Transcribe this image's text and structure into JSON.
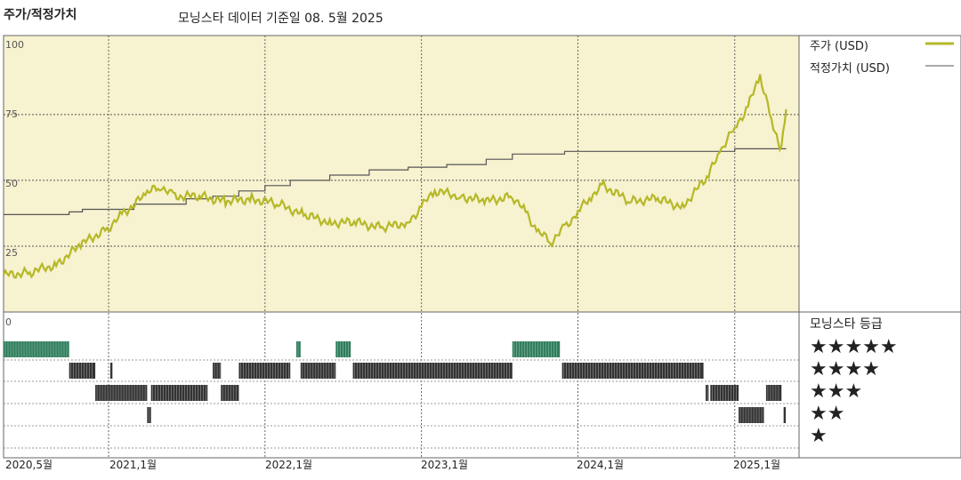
{
  "header": {
    "title": "주가/적정가치",
    "subtitle": "모닝스타 데이터 기준일 08. 5월 2025"
  },
  "legend": {
    "price_label": "주가 (USD)",
    "fair_label": "적정가치 (USD)"
  },
  "rating_panel": {
    "title": "모닝스타 등급",
    "stars": [
      "★★★★★",
      "★★★★",
      "★★★",
      "★★",
      "★"
    ]
  },
  "colors": {
    "price": "#b5b827",
    "fair": "#555555",
    "band5": "#2e7d5b",
    "bar": "#333333",
    "bg": "#f7f2cf"
  },
  "chart_data": {
    "type": "line",
    "title": "주가/적정가치",
    "ylim": [
      0,
      105
    ],
    "yticks": [
      "0",
      "25",
      "50",
      "75",
      "100"
    ],
    "xticks": [
      "2020,5월",
      "2021,1월",
      "2022,1월",
      "2023,1월",
      "2024,1월",
      "2025,1월"
    ],
    "x_range": [
      "2020-05",
      "2025-05"
    ],
    "series": [
      {
        "name": "주가 (USD)",
        "points": [
          [
            "2020-05",
            14
          ],
          [
            "2020-07",
            15
          ],
          [
            "2020-09",
            18
          ],
          [
            "2020-11",
            26
          ],
          [
            "2021-01",
            32
          ],
          [
            "2021-02",
            37
          ],
          [
            "2021-04",
            45
          ],
          [
            "2021-05",
            48
          ],
          [
            "2021-06",
            44
          ],
          [
            "2021-08",
            44
          ],
          [
            "2021-10",
            42
          ],
          [
            "2021-12",
            43
          ],
          [
            "2022-02",
            41
          ],
          [
            "2022-04",
            37
          ],
          [
            "2022-06",
            34
          ],
          [
            "2022-08",
            34
          ],
          [
            "2022-10",
            32
          ],
          [
            "2022-12",
            34
          ],
          [
            "2023-01",
            40
          ],
          [
            "2023-02",
            46
          ],
          [
            "2023-04",
            44
          ],
          [
            "2023-06",
            42
          ],
          [
            "2023-08",
            44
          ],
          [
            "2023-09",
            38
          ],
          [
            "2023-10",
            30
          ],
          [
            "2023-11",
            27
          ],
          [
            "2023-12",
            32
          ],
          [
            "2024-01",
            38
          ],
          [
            "2024-02",
            44
          ],
          [
            "2024-03",
            48
          ],
          [
            "2024-05",
            42
          ],
          [
            "2024-07",
            43
          ],
          [
            "2024-09",
            40
          ],
          [
            "2024-11",
            52
          ],
          [
            "2024-12",
            62
          ],
          [
            "2025-01",
            70
          ],
          [
            "2025-02",
            78
          ],
          [
            "2025-03",
            90
          ],
          [
            "2025-04",
            70
          ],
          [
            "2025-04-20",
            62
          ],
          [
            "2025-05",
            77
          ]
        ]
      },
      {
        "name": "적정가치 (USD)",
        "steps": [
          [
            "2020-05",
            37
          ],
          [
            "2020-10",
            38
          ],
          [
            "2020-11",
            39
          ],
          [
            "2021-03",
            41
          ],
          [
            "2021-07",
            43
          ],
          [
            "2021-09",
            44
          ],
          [
            "2021-11",
            46
          ],
          [
            "2022-01",
            48
          ],
          [
            "2022-03",
            50
          ],
          [
            "2022-06",
            52
          ],
          [
            "2022-09",
            54
          ],
          [
            "2022-12",
            55
          ],
          [
            "2023-03",
            56
          ],
          [
            "2023-06",
            58
          ],
          [
            "2023-08",
            60
          ],
          [
            "2023-12",
            61
          ],
          [
            "2024-06",
            61
          ],
          [
            "2024-12",
            61
          ],
          [
            "2025-01",
            62
          ],
          [
            "2025-05",
            62
          ]
        ]
      }
    ],
    "ratings": [
      {
        "stars": 5,
        "periods": [
          [
            "2020-05",
            "2020-10"
          ],
          [
            "2022-03-15",
            "2022-03-25"
          ],
          [
            "2022-06-15",
            "2022-07-20"
          ],
          [
            "2023-08",
            "2023-11-20"
          ]
        ]
      },
      {
        "stars": 4,
        "periods": [
          [
            "2020-10",
            "2020-12"
          ],
          [
            "2021-01-05",
            "2021-01-10"
          ],
          [
            "2021-09",
            "2021-09-20"
          ],
          [
            "2021-11",
            "2022-03"
          ],
          [
            "2022-03-25",
            "2022-06-15"
          ],
          [
            "2022-07-25",
            "2023-08"
          ],
          [
            "2023-11-25",
            "2024-10-20"
          ]
        ]
      },
      {
        "stars": 3,
        "periods": [
          [
            "2020-12",
            "2021-04"
          ],
          [
            "2021-04-10",
            "2021-08-20"
          ],
          [
            "2021-09-20",
            "2021-11"
          ],
          [
            "2024-10-25",
            "2024-11-01"
          ],
          [
            "2024-11-05",
            "2025-01-10"
          ],
          [
            "2025-03-15",
            "2025-04-20"
          ]
        ]
      },
      {
        "stars": 2,
        "periods": [
          [
            "2021-04-01",
            "2021-04-10"
          ],
          [
            "2025-01-10",
            "2025-03-10"
          ],
          [
            "2025-04-25",
            "2025-04-30"
          ]
        ]
      }
    ]
  }
}
